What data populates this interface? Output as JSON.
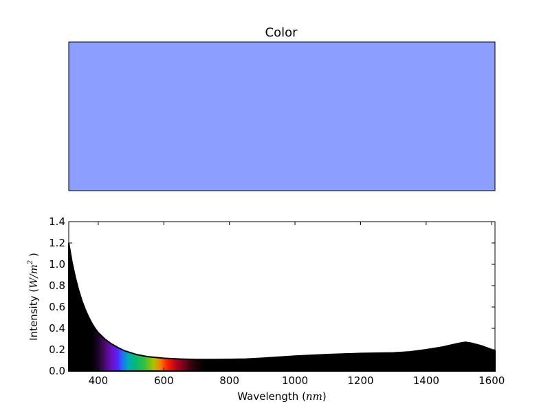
{
  "color_panel": {
    "title": "Color",
    "swatch_color": "#8c9eff"
  },
  "chart_data": {
    "type": "area",
    "xlabel": "Wavelength (nm)",
    "xlabel_prefix": "Wavelength (",
    "xlabel_unit": "nm",
    "xlabel_suffix": ")",
    "ylabel": "Intensity (W/m2)",
    "ylabel_prefix": "Intensity (",
    "ylabel_unit": "W/m",
    "ylabel_exp": "2",
    "ylabel_suffix": " )",
    "xlim": [
      310,
      1610
    ],
    "ylim": [
      0.0,
      1.4
    ],
    "xticks": [
      400,
      600,
      800,
      1000,
      1200,
      1400,
      1600
    ],
    "yticks": [
      0.0,
      0.2,
      0.4,
      0.6,
      0.8,
      1.0,
      1.2,
      1.4
    ],
    "xtick_labels": [
      "400",
      "600",
      "800",
      "1000",
      "1200",
      "1400",
      "1600"
    ],
    "ytick_labels": [
      "0.0",
      "0.2",
      "0.4",
      "0.6",
      "0.8",
      "1.0",
      "1.2",
      "1.4"
    ],
    "grid": false,
    "series": [
      {
        "x": [
          310,
          320,
          330,
          340,
          350,
          360,
          370,
          380,
          390,
          400,
          420,
          440,
          460,
          480,
          500,
          520,
          550,
          600,
          650,
          700,
          750,
          800,
          850,
          900,
          1000,
          1100,
          1200,
          1300,
          1350,
          1400,
          1450,
          1500,
          1520,
          1540,
          1570,
          1610
        ],
        "y": [
          1.2,
          1.02,
          0.88,
          0.76,
          0.66,
          0.58,
          0.51,
          0.45,
          0.4,
          0.36,
          0.3,
          0.255,
          0.22,
          0.19,
          0.17,
          0.152,
          0.135,
          0.12,
          0.112,
          0.108,
          0.108,
          0.11,
          0.112,
          0.12,
          0.14,
          0.155,
          0.165,
          0.17,
          0.18,
          0.2,
          0.225,
          0.26,
          0.27,
          0.26,
          0.235,
          0.19
        ]
      }
    ],
    "spectrum_fill": [
      {
        "x": 310,
        "color": "#000000"
      },
      {
        "x": 380,
        "color": "#000000"
      },
      {
        "x": 400,
        "color": "#1a0626"
      },
      {
        "x": 420,
        "color": "#4a0a6a"
      },
      {
        "x": 440,
        "color": "#6a10c0"
      },
      {
        "x": 460,
        "color": "#5a24ff"
      },
      {
        "x": 470,
        "color": "#2a60ff"
      },
      {
        "x": 490,
        "color": "#00a8c0"
      },
      {
        "x": 510,
        "color": "#00b880"
      },
      {
        "x": 540,
        "color": "#30c040"
      },
      {
        "x": 570,
        "color": "#b0c000"
      },
      {
        "x": 590,
        "color": "#f08000"
      },
      {
        "x": 610,
        "color": "#ff2000"
      },
      {
        "x": 640,
        "color": "#b00020"
      },
      {
        "x": 680,
        "color": "#400010"
      },
      {
        "x": 720,
        "color": "#000000"
      },
      {
        "x": 1610,
        "color": "#000000"
      }
    ]
  }
}
